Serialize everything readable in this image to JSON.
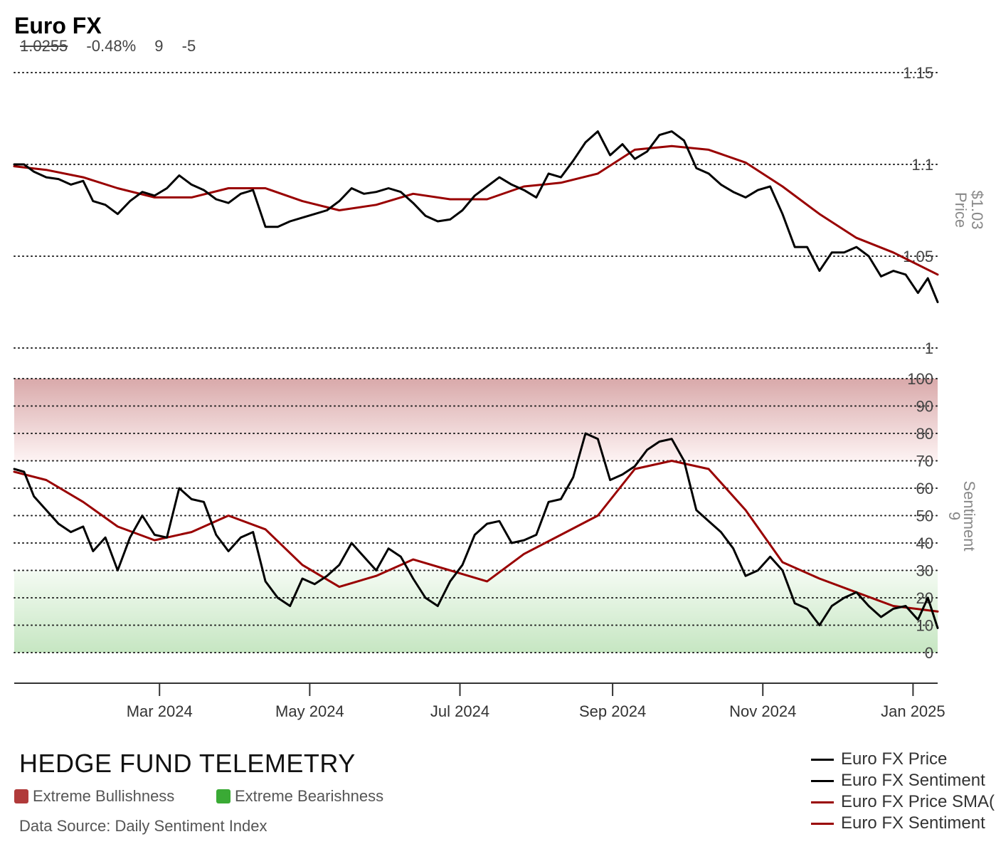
{
  "header": {
    "title": "Euro FX",
    "price": "1.0255",
    "change": "-0.48%",
    "sentiment": "9",
    "sentiment_change": "-5"
  },
  "branding": "HEDGE FUND TELEMETRY",
  "zone_legend": {
    "bull_label": "Extreme Bullishness",
    "bull_color": "#b03a3a",
    "bear_label": "Extreme Bearishness",
    "bear_color": "#3aaa35"
  },
  "source": "Data Source: Daily Sentiment Index",
  "legend": [
    {
      "label": "Euro FX Price",
      "color": "#000000"
    },
    {
      "label": "Euro FX Sentiment",
      "color": "#000000"
    },
    {
      "label": "Euro FX Price SMA(",
      "color": "#990000"
    },
    {
      "label": "Euro FX Sentiment",
      "color": "#990000"
    }
  ],
  "chart_data": [
    {
      "type": "line",
      "name": "price-panel",
      "axis_title": "Price",
      "axis_value": "$1.03",
      "y_ticks": [
        "1.15",
        "1.1",
        "1.05",
        "1"
      ],
      "y_tick_values": [
        1.15,
        1.1,
        1.05,
        1.0
      ],
      "ylim": [
        1.0,
        1.15
      ],
      "x_ticks": [
        "Mar 2024",
        "May 2024",
        "Jul 2024",
        "Sep 2024",
        "Nov 2024",
        "Jan 2025"
      ],
      "x_tick_dates": [
        "2024-03-01",
        "2024-05-01",
        "2024-07-01",
        "2024-09-01",
        "2024-11-01",
        "2025-01-01"
      ],
      "xlim": [
        "2024-01-02",
        "2025-01-11"
      ],
      "grid": "dotted horizontal",
      "series": [
        {
          "name": "Euro FX Price",
          "color": "#000000",
          "points": [
            [
              "2024-01-02",
              1.1
            ],
            [
              "2024-01-06",
              1.1
            ],
            [
              "2024-01-10",
              1.096
            ],
            [
              "2024-01-15",
              1.093
            ],
            [
              "2024-01-20",
              1.092
            ],
            [
              "2024-01-25",
              1.089
            ],
            [
              "2024-01-30",
              1.091
            ],
            [
              "2024-02-03",
              1.08
            ],
            [
              "2024-02-08",
              1.078
            ],
            [
              "2024-02-13",
              1.073
            ],
            [
              "2024-02-18",
              1.08
            ],
            [
              "2024-02-23",
              1.085
            ],
            [
              "2024-02-28",
              1.083
            ],
            [
              "2024-03-04",
              1.087
            ],
            [
              "2024-03-09",
              1.094
            ],
            [
              "2024-03-14",
              1.089
            ],
            [
              "2024-03-19",
              1.086
            ],
            [
              "2024-03-24",
              1.081
            ],
            [
              "2024-03-29",
              1.079
            ],
            [
              "2024-04-03",
              1.084
            ],
            [
              "2024-04-08",
              1.086
            ],
            [
              "2024-04-13",
              1.066
            ],
            [
              "2024-04-18",
              1.066
            ],
            [
              "2024-04-23",
              1.069
            ],
            [
              "2024-04-28",
              1.071
            ],
            [
              "2024-05-03",
              1.073
            ],
            [
              "2024-05-08",
              1.075
            ],
            [
              "2024-05-13",
              1.08
            ],
            [
              "2024-05-18",
              1.087
            ],
            [
              "2024-05-23",
              1.084
            ],
            [
              "2024-05-28",
              1.085
            ],
            [
              "2024-06-02",
              1.087
            ],
            [
              "2024-06-07",
              1.085
            ],
            [
              "2024-06-12",
              1.079
            ],
            [
              "2024-06-17",
              1.072
            ],
            [
              "2024-06-22",
              1.069
            ],
            [
              "2024-06-27",
              1.07
            ],
            [
              "2024-07-02",
              1.075
            ],
            [
              "2024-07-07",
              1.083
            ],
            [
              "2024-07-12",
              1.088
            ],
            [
              "2024-07-17",
              1.093
            ],
            [
              "2024-07-22",
              1.089
            ],
            [
              "2024-07-27",
              1.086
            ],
            [
              "2024-08-01",
              1.082
            ],
            [
              "2024-08-06",
              1.095
            ],
            [
              "2024-08-11",
              1.093
            ],
            [
              "2024-08-16",
              1.102
            ],
            [
              "2024-08-21",
              1.112
            ],
            [
              "2024-08-26",
              1.118
            ],
            [
              "2024-08-31",
              1.105
            ],
            [
              "2024-09-05",
              1.111
            ],
            [
              "2024-09-10",
              1.103
            ],
            [
              "2024-09-15",
              1.107
            ],
            [
              "2024-09-20",
              1.116
            ],
            [
              "2024-09-25",
              1.118
            ],
            [
              "2024-09-30",
              1.113
            ],
            [
              "2024-10-05",
              1.098
            ],
            [
              "2024-10-10",
              1.095
            ],
            [
              "2024-10-15",
              1.089
            ],
            [
              "2024-10-20",
              1.085
            ],
            [
              "2024-10-25",
              1.082
            ],
            [
              "2024-10-30",
              1.086
            ],
            [
              "2024-11-04",
              1.088
            ],
            [
              "2024-11-09",
              1.073
            ],
            [
              "2024-11-14",
              1.055
            ],
            [
              "2024-11-19",
              1.055
            ],
            [
              "2024-11-24",
              1.042
            ],
            [
              "2024-11-29",
              1.052
            ],
            [
              "2024-12-04",
              1.052
            ],
            [
              "2024-12-09",
              1.055
            ],
            [
              "2024-12-14",
              1.05
            ],
            [
              "2024-12-19",
              1.039
            ],
            [
              "2024-12-24",
              1.042
            ],
            [
              "2024-12-29",
              1.04
            ],
            [
              "2025-01-03",
              1.03
            ],
            [
              "2025-01-07",
              1.038
            ],
            [
              "2025-01-11",
              1.025
            ]
          ]
        },
        {
          "name": "Euro FX Price SMA(",
          "color": "#990000",
          "points": [
            [
              "2024-01-02",
              1.099
            ],
            [
              "2024-01-15",
              1.097
            ],
            [
              "2024-01-30",
              1.093
            ],
            [
              "2024-02-13",
              1.087
            ],
            [
              "2024-02-28",
              1.082
            ],
            [
              "2024-03-14",
              1.082
            ],
            [
              "2024-03-29",
              1.087
            ],
            [
              "2024-04-13",
              1.087
            ],
            [
              "2024-04-28",
              1.08
            ],
            [
              "2024-05-13",
              1.075
            ],
            [
              "2024-05-28",
              1.078
            ],
            [
              "2024-06-12",
              1.084
            ],
            [
              "2024-06-27",
              1.081
            ],
            [
              "2024-07-12",
              1.081
            ],
            [
              "2024-07-27",
              1.088
            ],
            [
              "2024-08-11",
              1.09
            ],
            [
              "2024-08-26",
              1.095
            ],
            [
              "2024-09-10",
              1.108
            ],
            [
              "2024-09-25",
              1.11
            ],
            [
              "2024-10-10",
              1.108
            ],
            [
              "2024-10-25",
              1.101
            ],
            [
              "2024-11-09",
              1.088
            ],
            [
              "2024-11-24",
              1.073
            ],
            [
              "2024-12-09",
              1.06
            ],
            [
              "2024-12-24",
              1.052
            ],
            [
              "2025-01-11",
              1.04
            ]
          ]
        }
      ]
    },
    {
      "type": "line",
      "name": "sentiment-panel",
      "axis_title": "Sentiment",
      "axis_value": "9",
      "y_ticks": [
        "100",
        "90",
        "80",
        "70",
        "60",
        "50",
        "40",
        "30",
        "20",
        "10",
        "0"
      ],
      "y_tick_values": [
        100,
        90,
        80,
        70,
        60,
        50,
        40,
        30,
        20,
        10,
        0
      ],
      "ylim": [
        0,
        100
      ],
      "bands": [
        {
          "name": "Extreme Bullishness",
          "from": 70,
          "to": 100
        },
        {
          "name": "Extreme Bearishness",
          "from": 0,
          "to": 30
        }
      ],
      "series": [
        {
          "name": "Euro FX Sentiment",
          "color": "#000000",
          "points": [
            [
              "2024-01-02",
              67
            ],
            [
              "2024-01-06",
              66
            ],
            [
              "2024-01-10",
              57
            ],
            [
              "2024-01-15",
              52
            ],
            [
              "2024-01-20",
              47
            ],
            [
              "2024-01-25",
              44
            ],
            [
              "2024-01-30",
              46
            ],
            [
              "2024-02-03",
              37
            ],
            [
              "2024-02-08",
              42
            ],
            [
              "2024-02-13",
              30
            ],
            [
              "2024-02-18",
              42
            ],
            [
              "2024-02-23",
              50
            ],
            [
              "2024-02-28",
              43
            ],
            [
              "2024-03-04",
              42
            ],
            [
              "2024-03-09",
              60
            ],
            [
              "2024-03-14",
              56
            ],
            [
              "2024-03-19",
              55
            ],
            [
              "2024-03-24",
              43
            ],
            [
              "2024-03-29",
              37
            ],
            [
              "2024-04-03",
              42
            ],
            [
              "2024-04-08",
              44
            ],
            [
              "2024-04-13",
              26
            ],
            [
              "2024-04-18",
              20
            ],
            [
              "2024-04-23",
              17
            ],
            [
              "2024-04-28",
              27
            ],
            [
              "2024-05-03",
              25
            ],
            [
              "2024-05-08",
              28
            ],
            [
              "2024-05-13",
              32
            ],
            [
              "2024-05-18",
              40
            ],
            [
              "2024-05-23",
              35
            ],
            [
              "2024-05-28",
              30
            ],
            [
              "2024-06-02",
              38
            ],
            [
              "2024-06-07",
              35
            ],
            [
              "2024-06-12",
              27
            ],
            [
              "2024-06-17",
              20
            ],
            [
              "2024-06-22",
              17
            ],
            [
              "2024-06-27",
              26
            ],
            [
              "2024-07-02",
              32
            ],
            [
              "2024-07-07",
              43
            ],
            [
              "2024-07-12",
              47
            ],
            [
              "2024-07-17",
              48
            ],
            [
              "2024-07-22",
              40
            ],
            [
              "2024-07-27",
              41
            ],
            [
              "2024-08-01",
              43
            ],
            [
              "2024-08-06",
              55
            ],
            [
              "2024-08-11",
              56
            ],
            [
              "2024-08-16",
              64
            ],
            [
              "2024-08-21",
              80
            ],
            [
              "2024-08-26",
              78
            ],
            [
              "2024-08-31",
              63
            ],
            [
              "2024-09-05",
              65
            ],
            [
              "2024-09-10",
              68
            ],
            [
              "2024-09-15",
              74
            ],
            [
              "2024-09-20",
              77
            ],
            [
              "2024-09-25",
              78
            ],
            [
              "2024-09-30",
              70
            ],
            [
              "2024-10-05",
              52
            ],
            [
              "2024-10-10",
              48
            ],
            [
              "2024-10-15",
              44
            ],
            [
              "2024-10-20",
              38
            ],
            [
              "2024-10-25",
              28
            ],
            [
              "2024-10-30",
              30
            ],
            [
              "2024-11-04",
              35
            ],
            [
              "2024-11-09",
              30
            ],
            [
              "2024-11-14",
              18
            ],
            [
              "2024-11-19",
              16
            ],
            [
              "2024-11-24",
              10
            ],
            [
              "2024-11-29",
              17
            ],
            [
              "2024-12-04",
              20
            ],
            [
              "2024-12-09",
              22
            ],
            [
              "2024-12-14",
              17
            ],
            [
              "2024-12-19",
              13
            ],
            [
              "2024-12-24",
              16
            ],
            [
              "2024-12-29",
              17
            ],
            [
              "2025-01-03",
              12
            ],
            [
              "2025-01-07",
              20
            ],
            [
              "2025-01-11",
              9
            ]
          ]
        },
        {
          "name": "Euro FX Sentiment",
          "color": "#990000",
          "points": [
            [
              "2024-01-02",
              66
            ],
            [
              "2024-01-15",
              63
            ],
            [
              "2024-01-30",
              55
            ],
            [
              "2024-02-13",
              46
            ],
            [
              "2024-02-28",
              41
            ],
            [
              "2024-03-14",
              44
            ],
            [
              "2024-03-29",
              50
            ],
            [
              "2024-04-13",
              45
            ],
            [
              "2024-04-28",
              32
            ],
            [
              "2024-05-13",
              24
            ],
            [
              "2024-05-28",
              28
            ],
            [
              "2024-06-12",
              34
            ],
            [
              "2024-06-27",
              30
            ],
            [
              "2024-07-12",
              26
            ],
            [
              "2024-07-27",
              36
            ],
            [
              "2024-08-11",
              43
            ],
            [
              "2024-08-26",
              50
            ],
            [
              "2024-09-10",
              67
            ],
            [
              "2024-09-25",
              70
            ],
            [
              "2024-10-10",
              67
            ],
            [
              "2024-10-25",
              52
            ],
            [
              "2024-11-09",
              33
            ],
            [
              "2024-11-24",
              27
            ],
            [
              "2024-12-09",
              22
            ],
            [
              "2024-12-24",
              17
            ],
            [
              "2025-01-11",
              15
            ]
          ]
        }
      ]
    }
  ]
}
